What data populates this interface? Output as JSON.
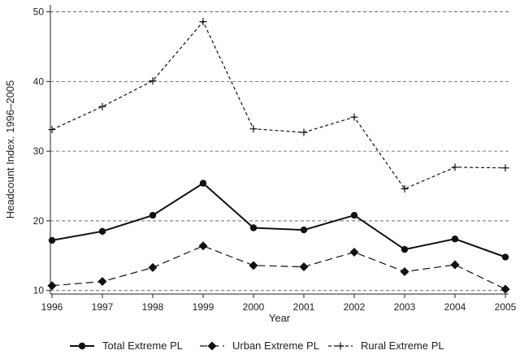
{
  "chart_data": {
    "type": "line",
    "title": "",
    "xlabel": "Year",
    "ylabel": "Headcount Index. 1996–2005",
    "x": [
      1996,
      1997,
      1998,
      1999,
      2000,
      2001,
      2002,
      2003,
      2004,
      2005
    ],
    "xlim": [
      1996,
      2005
    ],
    "ylim": [
      9.5,
      51
    ],
    "yticks": [
      10,
      20,
      30,
      40,
      50
    ],
    "grid": "horizontal-dashed",
    "legend_position": "bottom",
    "series": [
      {
        "name": "Total Extreme PL",
        "marker": "circle",
        "line": "solid",
        "values": [
          17.2,
          18.5,
          20.8,
          25.4,
          19.0,
          18.7,
          20.8,
          15.9,
          17.4,
          14.8
        ]
      },
      {
        "name": "Urban Extreme PL",
        "marker": "diamond",
        "line": "dashed",
        "values": [
          10.7,
          11.3,
          13.3,
          16.4,
          13.6,
          13.4,
          15.5,
          12.7,
          13.7,
          10.2
        ]
      },
      {
        "name": "Rural Extreme PL",
        "marker": "plus",
        "line": "dotted",
        "values": [
          33.1,
          36.4,
          40.1,
          48.6,
          33.2,
          32.7,
          34.9,
          24.6,
          27.7,
          27.6
        ]
      }
    ]
  }
}
